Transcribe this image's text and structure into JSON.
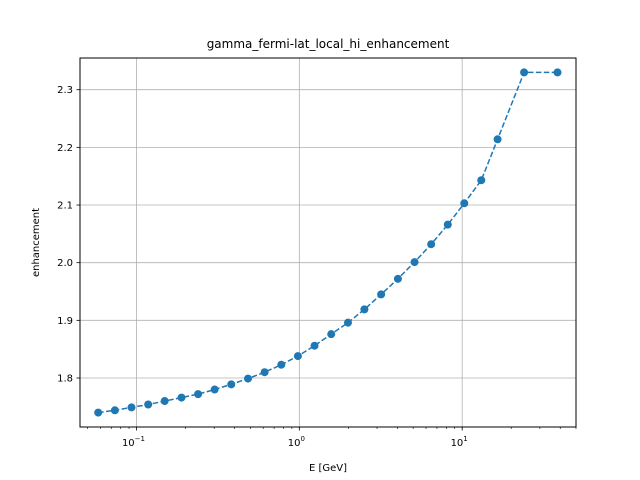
{
  "chart_data": {
    "type": "line",
    "title": "gamma_fermi-lat_local_hi_enhancement",
    "xlabel": "E [GeV]",
    "ylabel": "enhancement",
    "xscale": "log",
    "xlim": [
      0.045,
      50
    ],
    "ylim": [
      1.715,
      2.355
    ],
    "grid": true,
    "line_style": "dashed",
    "marker": "circle",
    "color": "#1f77b4",
    "x_tick_labels": [
      {
        "value": 0.1,
        "base": "10",
        "exp": "−1"
      },
      {
        "value": 1,
        "base": "10",
        "exp": "0"
      },
      {
        "value": 10,
        "base": "10",
        "exp": "1"
      }
    ],
    "y_ticks": [
      "1.8",
      "1.9",
      "2.0",
      "2.1",
      "2.2",
      "2.3"
    ],
    "series": [
      {
        "x": [
          0.0582,
          0.0737,
          0.0932,
          0.118,
          0.149,
          0.189,
          0.239,
          0.302,
          0.382,
          0.484,
          0.612,
          0.775,
          0.98,
          1.24,
          1.57,
          1.99,
          2.51,
          3.18,
          4.03,
          5.1,
          6.45,
          8.16,
          10.3,
          13.1,
          16.5,
          24.0,
          38.5
        ],
        "y": [
          1.74,
          1.744,
          1.749,
          1.754,
          1.76,
          1.766,
          1.772,
          1.78,
          1.789,
          1.799,
          1.81,
          1.823,
          1.838,
          1.856,
          1.876,
          1.896,
          1.919,
          1.945,
          1.972,
          2.001,
          2.032,
          2.066,
          2.103,
          2.143,
          2.214,
          2.33,
          2.33
        ]
      }
    ]
  }
}
